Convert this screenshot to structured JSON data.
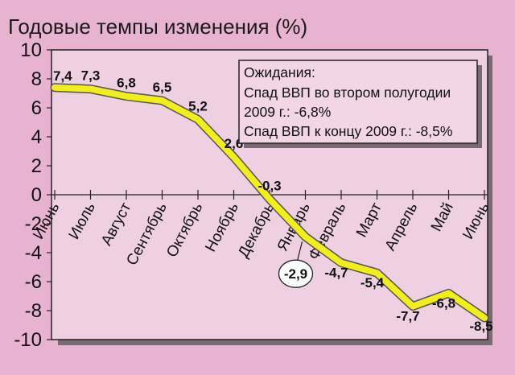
{
  "chart_data": {
    "type": "line",
    "title": "Годовые темпы изменения (%)",
    "categories": [
      "Июнь",
      "Июль",
      "Август",
      "Сентябрь",
      "Октябрь",
      "Ноябрь",
      "Декабрь",
      "Январь",
      "Февраль",
      "Март",
      "Апрель",
      "Май",
      "Июнь"
    ],
    "values": [
      7.4,
      7.3,
      6.8,
      6.5,
      5.2,
      2.6,
      -0.3,
      -2.9,
      -4.7,
      -5.4,
      -7.7,
      -6.8,
      -8.5
    ],
    "data_labels": [
      "7,4",
      "7,3",
      "6,8",
      "6,5",
      "5,2",
      "2,6",
      "-0,3",
      "-2,9",
      "-4,7",
      "-5,4",
      "-7,7",
      "-6,8",
      "-8,5"
    ],
    "ylim": [
      -10,
      10
    ],
    "yticks": [
      10,
      8,
      6,
      4,
      2,
      0,
      -2,
      -4,
      -6,
      -8,
      -10
    ],
    "ytick_labels": [
      "10",
      "8",
      "6",
      "4",
      "2",
      "0",
      "-2",
      "-4",
      "-6",
      "-8",
      "-10"
    ],
    "grid": false,
    "xlabel": "",
    "ylabel": ""
  },
  "annotation": {
    "lines": [
      "Ожидания:",
      "Спад ВВП во втором полугодии",
      "2009 г.: -6,8%",
      "Спад ВВП к концу 2009 г.: -8,5%"
    ]
  },
  "colors": {
    "background": "#e8b3d0",
    "plot_area": "#eed0e2",
    "line": "#f2ee1a",
    "line_outline": "#555555",
    "shadow": "#7a6a74"
  }
}
